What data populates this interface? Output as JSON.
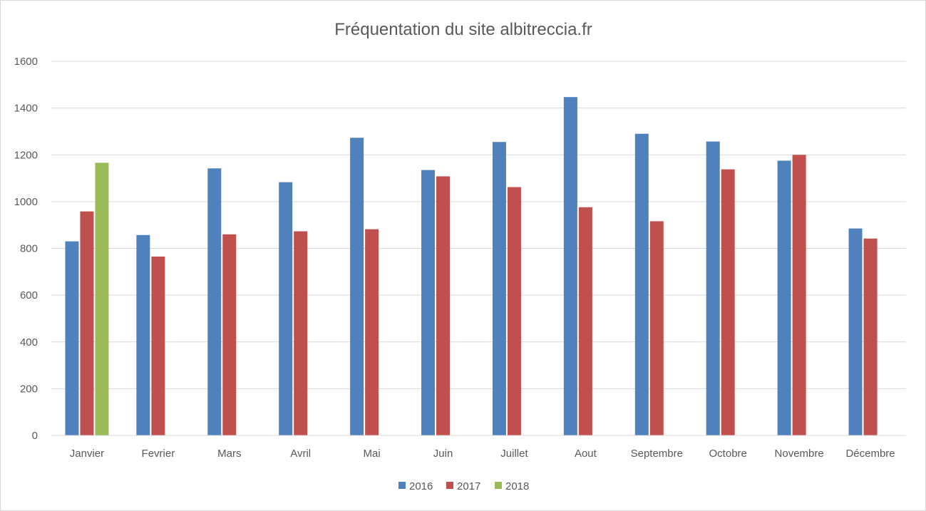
{
  "chart_data": {
    "type": "bar",
    "title": "Fréquentation du site albitreccia.fr",
    "xlabel": "",
    "ylabel": "",
    "categories": [
      "Janvier",
      "Fevrier",
      "Mars",
      "Avril",
      "Mai",
      "Juin",
      "Juillet",
      "Aout",
      "Septembre",
      "Octobre",
      "Novembre",
      "Décembre"
    ],
    "series": [
      {
        "name": "2016",
        "color": "#4f81bd",
        "values": [
          830,
          857,
          1142,
          1083,
          1273,
          1135,
          1255,
          1447,
          1290,
          1257,
          1175,
          885
        ]
      },
      {
        "name": "2017",
        "color": "#c0504d",
        "values": [
          958,
          765,
          860,
          873,
          882,
          1108,
          1062,
          976,
          916,
          1138,
          1200,
          842
        ]
      },
      {
        "name": "2018",
        "color": "#9bbb59",
        "values": [
          1166,
          null,
          null,
          null,
          null,
          null,
          null,
          null,
          null,
          null,
          null,
          null
        ]
      }
    ],
    "ylim": [
      0,
      1600
    ],
    "yticks": [
      0,
      200,
      400,
      600,
      800,
      1000,
      1200,
      1400,
      1600
    ],
    "grid": true,
    "legend": "bottom-center"
  }
}
